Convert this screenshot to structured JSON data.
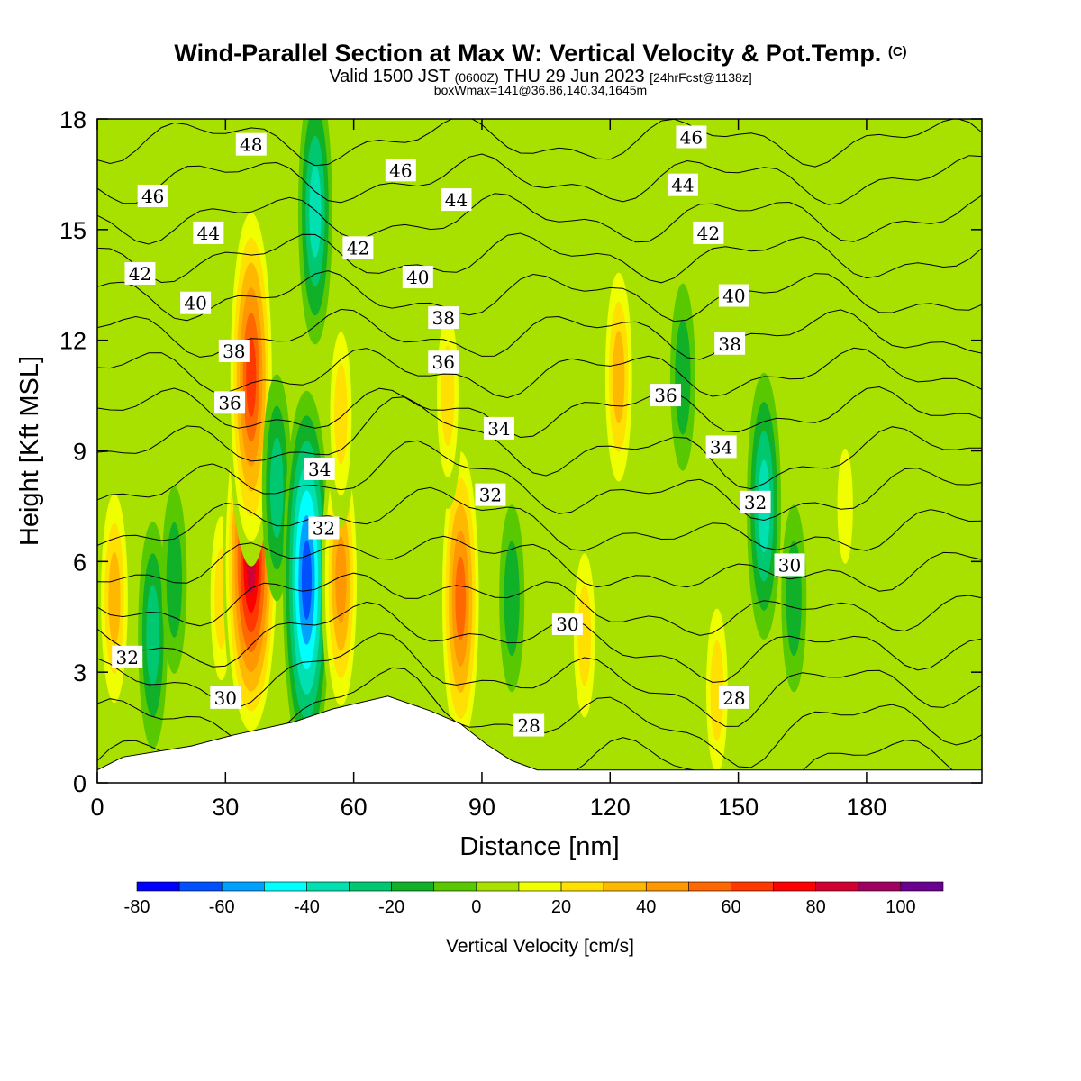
{
  "header": {
    "title": "Wind-Parallel Section at Max W: Vertical Velocity & Pot.Temp.",
    "title_mark": "(C)",
    "subtitle_main_a": "Valid 1500 JST",
    "subtitle_small_a": "(0600Z)",
    "subtitle_main_b": "THU 29 Jun 2023",
    "subtitle_small_b": "[24hrFcst@1138z]",
    "info_line": "boxWmax=141@36.86,140.34,1645m"
  },
  "chart_data": {
    "type": "heatmap",
    "description_fields": "Filled contours of vertical velocity with overlaid potential temperature contour lines",
    "xlabel": "Distance [nm]",
    "ylabel": "Height [Kft MSL]",
    "xlim": [
      0,
      207
    ],
    "ylim": [
      0,
      18
    ],
    "xticks": [
      0,
      30,
      60,
      90,
      120,
      150,
      180
    ],
    "yticks": [
      0,
      3,
      6,
      9,
      12,
      15,
      18
    ],
    "colorbar": {
      "label": "Vertical Velocity [cm/s]",
      "ticks": [
        -80,
        -60,
        -40,
        -20,
        0,
        20,
        40,
        60,
        80,
        100
      ],
      "bounds": [
        -80,
        -70,
        -60,
        -50,
        -40,
        -30,
        -20,
        -10,
        0,
        10,
        20,
        30,
        40,
        50,
        60,
        70,
        80,
        90,
        100,
        110
      ],
      "colors": [
        "#0000ff",
        "#0050ff",
        "#00a0ff",
        "#00ffff",
        "#00e0b0",
        "#00c870",
        "#10b028",
        "#58c800",
        "#a8e000",
        "#f0ff00",
        "#ffe000",
        "#ffb800",
        "#ff9800",
        "#ff6800",
        "#ff3800",
        "#ff0000",
        "#d00030",
        "#a00060",
        "#6a0090"
      ]
    },
    "vertical_velocity_features": [
      {
        "x": 4,
        "y": 5,
        "w": 35,
        "kind": "updraft"
      },
      {
        "x": 13,
        "y": 4,
        "w": -25,
        "kind": "downdraft"
      },
      {
        "x": 18,
        "y": 5.5,
        "w": -20,
        "kind": "downdraft"
      },
      {
        "x": 29,
        "y": 5,
        "w": 30,
        "kind": "updraft"
      },
      {
        "x": 36,
        "y": 6,
        "w": 85,
        "kind": "updraft"
      },
      {
        "x": 36,
        "y": 11,
        "w": 70,
        "kind": "updraft"
      },
      {
        "x": 42,
        "y": 8,
        "w": -25,
        "kind": "downdraft"
      },
      {
        "x": 49,
        "y": 5.5,
        "w": -65,
        "kind": "downdraft"
      },
      {
        "x": 51,
        "y": 15.5,
        "w": -40,
        "kind": "downdraft"
      },
      {
        "x": 57,
        "y": 5.5,
        "w": 45,
        "kind": "updraft"
      },
      {
        "x": 57,
        "y": 10,
        "w": 30,
        "kind": "updraft"
      },
      {
        "x": 85,
        "y": 5,
        "w": 60,
        "kind": "updraft"
      },
      {
        "x": 82,
        "y": 10.5,
        "w": 25,
        "kind": "updraft"
      },
      {
        "x": 97,
        "y": 5,
        "w": -20,
        "kind": "downdraft"
      },
      {
        "x": 122,
        "y": 11,
        "w": 40,
        "kind": "updraft"
      },
      {
        "x": 114,
        "y": 4,
        "w": 25,
        "kind": "updraft"
      },
      {
        "x": 137,
        "y": 11,
        "w": -20,
        "kind": "downdraft"
      },
      {
        "x": 156,
        "y": 7.5,
        "w": -35,
        "kind": "downdraft"
      },
      {
        "x": 145,
        "y": 2.5,
        "w": 30,
        "kind": "updraft"
      },
      {
        "x": 175,
        "y": 7.5,
        "w": 20,
        "kind": "updraft"
      },
      {
        "x": 163,
        "y": 5,
        "w": -20,
        "kind": "downdraft"
      }
    ],
    "terrain_profile": [
      [
        0,
        0.35
      ],
      [
        6,
        0.7
      ],
      [
        22,
        1.0
      ],
      [
        32,
        1.3
      ],
      [
        46,
        1.65
      ],
      [
        55,
        2.0
      ],
      [
        68,
        2.35
      ],
      [
        78,
        1.95
      ],
      [
        85,
        1.6
      ],
      [
        91,
        1.05
      ],
      [
        97,
        0.6
      ],
      [
        103,
        0.35
      ],
      [
        207,
        0.35
      ]
    ],
    "theta_contour_labels": [
      {
        "text": "48",
        "x": 36,
        "y": 17.3
      },
      {
        "text": "46",
        "x": 13,
        "y": 15.9
      },
      {
        "text": "46",
        "x": 71,
        "y": 16.6
      },
      {
        "text": "46",
        "x": 139,
        "y": 17.5
      },
      {
        "text": "44",
        "x": 26,
        "y": 14.9
      },
      {
        "text": "44",
        "x": 84,
        "y": 15.8
      },
      {
        "text": "44",
        "x": 137,
        "y": 16.2
      },
      {
        "text": "42",
        "x": 10,
        "y": 13.8
      },
      {
        "text": "42",
        "x": 61,
        "y": 14.5
      },
      {
        "text": "42",
        "x": 143,
        "y": 14.9
      },
      {
        "text": "40",
        "x": 23,
        "y": 13.0
      },
      {
        "text": "40",
        "x": 75,
        "y": 13.7
      },
      {
        "text": "40",
        "x": 149,
        "y": 13.2
      },
      {
        "text": "38",
        "x": 32,
        "y": 11.7
      },
      {
        "text": "38",
        "x": 81,
        "y": 12.6
      },
      {
        "text": "38",
        "x": 148,
        "y": 11.9
      },
      {
        "text": "36",
        "x": 31,
        "y": 10.3
      },
      {
        "text": "36",
        "x": 81,
        "y": 11.4
      },
      {
        "text": "36",
        "x": 133,
        "y": 10.5
      },
      {
        "text": "34",
        "x": 52,
        "y": 8.5
      },
      {
        "text": "34",
        "x": 94,
        "y": 9.6
      },
      {
        "text": "34",
        "x": 146,
        "y": 9.1
      },
      {
        "text": "32",
        "x": 7,
        "y": 3.4
      },
      {
        "text": "32",
        "x": 53,
        "y": 6.9
      },
      {
        "text": "32",
        "x": 92,
        "y": 7.8
      },
      {
        "text": "32",
        "x": 154,
        "y": 7.6
      },
      {
        "text": "30",
        "x": 30,
        "y": 2.3
      },
      {
        "text": "30",
        "x": 110,
        "y": 4.3
      },
      {
        "text": "30",
        "x": 162,
        "y": 5.9
      },
      {
        "text": "28",
        "x": 101,
        "y": 1.55
      },
      {
        "text": "28",
        "x": 149,
        "y": 2.3
      }
    ]
  }
}
